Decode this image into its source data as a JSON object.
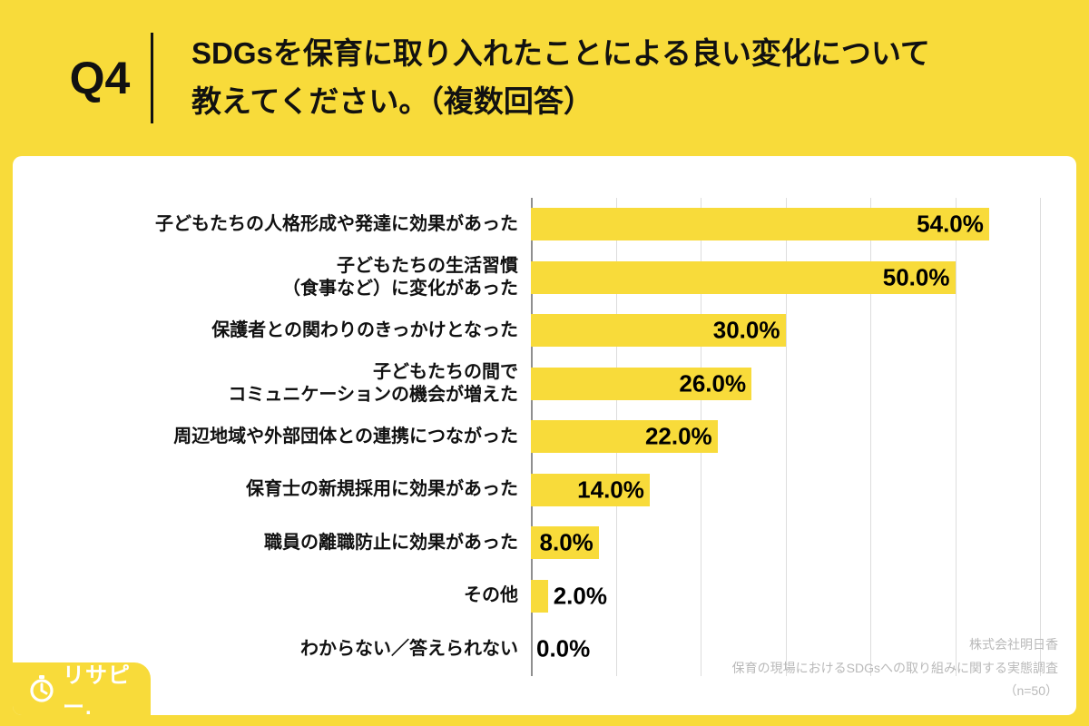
{
  "header": {
    "question_number": "Q4",
    "title_line1": "SDGsを保育に取り入れたことによる良い変化について",
    "title_line2": "教えてください。（複数回答）"
  },
  "chart_data": {
    "type": "bar",
    "orientation": "horizontal",
    "title": "SDGsを保育に取り入れたことによる良い変化について教えてください。（複数回答）",
    "categories": [
      [
        "子どもたちの人格形成や発達に効果があった"
      ],
      [
        "子どもたちの生活習慣",
        "（食事など）に変化があった"
      ],
      [
        "保護者との関わりのきっかけとなった"
      ],
      [
        "子どもたちの間で",
        "コミュニケーションの機会が増えた"
      ],
      [
        "周辺地域や外部団体との連携につながった"
      ],
      [
        "保育士の新規採用に効果があった"
      ],
      [
        "職員の離職防止に効果があった"
      ],
      [
        "その他"
      ],
      [
        "わからない／答えられない"
      ]
    ],
    "values": [
      54.0,
      50.0,
      30.0,
      26.0,
      22.0,
      14.0,
      8.0,
      2.0,
      0.0
    ],
    "value_labels": [
      "54.0%",
      "50.0%",
      "30.0%",
      "26.0%",
      "22.0%",
      "14.0%",
      "8.0%",
      "2.0%",
      "0.0%"
    ],
    "xlim": [
      0,
      60
    ],
    "grid_step": 10,
    "grid": true,
    "legend": false,
    "bar_color": "#F8DB3A"
  },
  "footer": {
    "line1": "株式会社明日香",
    "line2": "保育の現場におけるSDGsへの取り組みに関する実態調査",
    "line3": "（n=50）"
  },
  "logo": {
    "text": "リサピー."
  },
  "colors": {
    "background": "#F8DB3A",
    "card": "#FFFFFF",
    "text": "#111111",
    "gridline": "#DDDDDD",
    "axis": "#8F8F8F",
    "footer_text": "#B9B9B9"
  }
}
